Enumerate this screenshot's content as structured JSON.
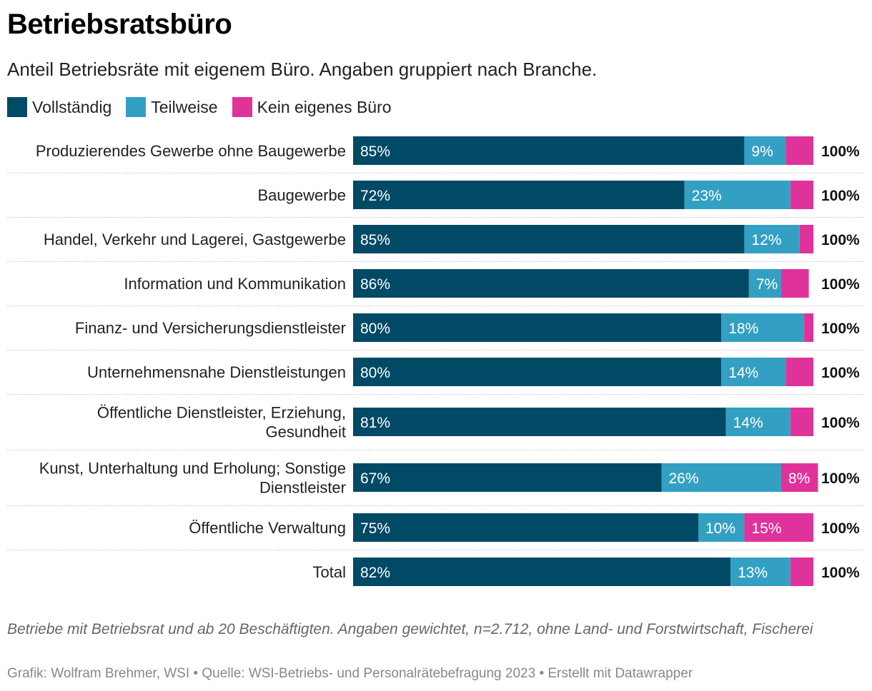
{
  "title": "Betriebsratsbüro",
  "subtitle": "Anteil Betriebsräte mit eigenem Büro. Angaben gruppiert nach Branche.",
  "legend": [
    {
      "label": "Vollständig",
      "color": "#004a66"
    },
    {
      "label": "Teilweise",
      "color": "#33a0c3"
    },
    {
      "label": "Kein eigenes Büro",
      "color": "#e0329b"
    }
  ],
  "chart_data": {
    "type": "bar",
    "orientation": "horizontal",
    "stacked": true,
    "categories": [
      [
        "Produzierendes Gewerbe ohne Baugewerbe"
      ],
      [
        "Baugewerbe"
      ],
      [
        "Handel, Verkehr und Lagerei, Gastgewerbe"
      ],
      [
        "Information und Kommunikation"
      ],
      [
        "Finanz- und Versicherungsdienstleister"
      ],
      [
        "Unternehmensnahe Dienstleistungen"
      ],
      [
        "Öffentliche Dienstleister, Erziehung,",
        "Gesundheit"
      ],
      [
        "Kunst, Unterhaltung und Erholung; Sonstige",
        "Dienstleister"
      ],
      [
        "Öffentliche Verwaltung"
      ],
      [
        "Total"
      ]
    ],
    "series": [
      {
        "name": "Vollständig",
        "color": "#004a66",
        "values": [
          85,
          72,
          85,
          86,
          80,
          80,
          81,
          67,
          75,
          82
        ]
      },
      {
        "name": "Teilweise",
        "color": "#33a0c3",
        "values": [
          9,
          23,
          12,
          7,
          18,
          14,
          14,
          26,
          10,
          13
        ]
      },
      {
        "name": "Kein eigenes Büro",
        "color": "#e0329b",
        "values": [
          6,
          5,
          3,
          6,
          2,
          6,
          5,
          8,
          15,
          5
        ]
      }
    ],
    "data_labels": [
      [
        "85%",
        "9%",
        ""
      ],
      [
        "72%",
        "23%",
        ""
      ],
      [
        "85%",
        "12%",
        ""
      ],
      [
        "86%",
        "7%",
        ""
      ],
      [
        "80%",
        "18%",
        ""
      ],
      [
        "80%",
        "14%",
        ""
      ],
      [
        "81%",
        "14%",
        ""
      ],
      [
        "67%",
        "26%",
        "8%"
      ],
      [
        "75%",
        "10%",
        "15%"
      ],
      [
        "82%",
        "13%",
        ""
      ]
    ],
    "totals": [
      "100%",
      "100%",
      "100%",
      "100%",
      "100%",
      "100%",
      "100%",
      "100%",
      "100%",
      "100%"
    ],
    "xlim": [
      0,
      100
    ]
  },
  "note": "Betriebe mit Betriebsrat und ab 20 Beschäftigten. Angaben gewichtet, n=2.712, ohne Land- und Forstwirtschaft, Fischerei",
  "credit": "Grafik: Wolfram Brehmer, WSI • Quelle: WSI-Betriebs- und Personalrätebefragung 2023 • Erstellt mit Datawrapper"
}
